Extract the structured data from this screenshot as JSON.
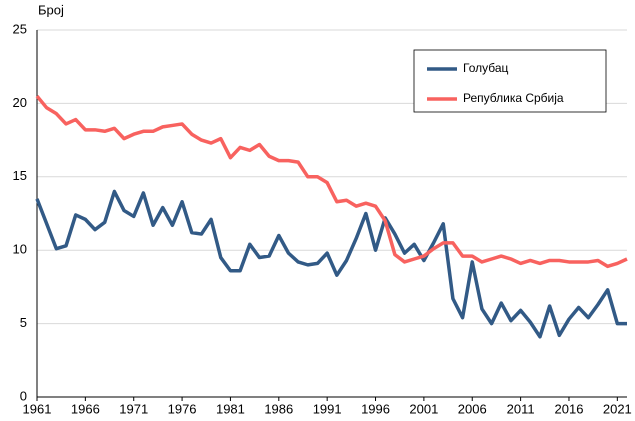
{
  "chart_data": {
    "type": "line",
    "y_label": "Број",
    "x": [
      1961,
      1962,
      1963,
      1964,
      1965,
      1966,
      1967,
      1968,
      1969,
      1970,
      1971,
      1972,
      1973,
      1974,
      1975,
      1976,
      1977,
      1978,
      1979,
      1980,
      1981,
      1982,
      1983,
      1984,
      1985,
      1986,
      1987,
      1988,
      1989,
      1990,
      1991,
      1992,
      1993,
      1994,
      1995,
      1996,
      1997,
      1998,
      1999,
      2000,
      2001,
      2002,
      2003,
      2004,
      2005,
      2006,
      2007,
      2008,
      2009,
      2010,
      2011,
      2012,
      2013,
      2014,
      2015,
      2016,
      2017,
      2018,
      2019,
      2020,
      2021,
      2022
    ],
    "series": [
      {
        "name": "Голубац",
        "color": "#325a86",
        "values": [
          13.5,
          11.8,
          10.1,
          10.3,
          12.4,
          12.1,
          11.4,
          11.9,
          14.0,
          12.7,
          12.3,
          13.9,
          11.7,
          12.9,
          11.7,
          13.3,
          11.2,
          11.1,
          12.1,
          9.5,
          8.6,
          8.6,
          10.4,
          9.5,
          9.6,
          11.0,
          9.8,
          9.2,
          9.0,
          9.1,
          9.8,
          8.3,
          9.3,
          10.8,
          12.5,
          10.0,
          12.2,
          11.1,
          9.8,
          10.4,
          9.3,
          10.5,
          11.8,
          6.7,
          5.4,
          9.2,
          6.0,
          5.0,
          6.4,
          5.2,
          5.9,
          5.1,
          4.1,
          6.2,
          4.2,
          5.3,
          6.1,
          5.4,
          6.3,
          7.3,
          5.0,
          5.0
        ]
      },
      {
        "name": "Република Србија",
        "color": "#f8625f",
        "values": [
          20.5,
          19.7,
          19.3,
          18.6,
          18.9,
          18.2,
          18.2,
          18.1,
          18.3,
          17.6,
          17.9,
          18.1,
          18.1,
          18.4,
          18.5,
          18.6,
          17.9,
          17.5,
          17.3,
          17.6,
          16.3,
          17.0,
          16.8,
          17.2,
          16.4,
          16.1,
          16.1,
          16.0,
          15.0,
          15.0,
          14.6,
          13.3,
          13.4,
          13.0,
          13.2,
          13.0,
          12.0,
          9.7,
          9.2,
          9.4,
          9.6,
          10.1,
          10.5,
          10.5,
          9.6,
          9.6,
          9.2,
          9.4,
          9.6,
          9.4,
          9.1,
          9.3,
          9.1,
          9.3,
          9.3,
          9.2,
          9.2,
          9.2,
          9.3,
          8.9,
          9.1,
          9.4
        ]
      }
    ],
    "xlim": [
      1961,
      2022
    ],
    "xticks": [
      1961,
      1966,
      1971,
      1976,
      1981,
      1986,
      1991,
      1996,
      2001,
      2006,
      2011,
      2016,
      2021
    ],
    "ylim": [
      0,
      25
    ],
    "yticks": [
      0,
      5,
      10,
      15,
      20,
      25
    ],
    "grid": true,
    "legend": "top-right"
  }
}
